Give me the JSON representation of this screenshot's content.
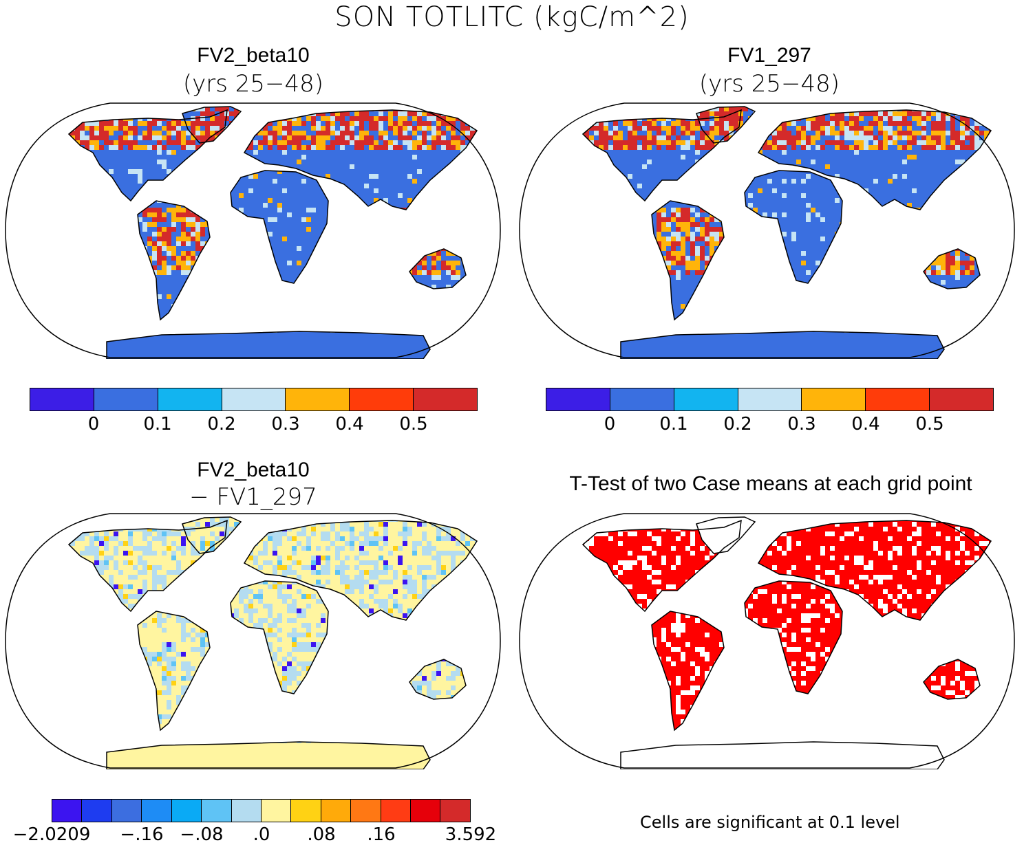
{
  "figure_title": "SON TOTLITC (kgC/m^2)",
  "panels": [
    {
      "title": "FV2_beta10",
      "subtitle": "(yrs 25−48)"
    },
    {
      "title": "FV1_297",
      "subtitle": "(yrs 25−48)"
    },
    {
      "title": "FV2_beta10",
      "subtitle": "− FV1_297"
    },
    {
      "title": "T-Test of two Case means at each grid point",
      "subtitle": ""
    }
  ],
  "colorbar_abs": {
    "colors": [
      "#3c1ee6",
      "#3a6fe0",
      "#12b4f0",
      "#c6e4f4",
      "#ffb40a",
      "#ff3c0a",
      "#d42a2a"
    ],
    "ticks": [
      "0",
      "0.1",
      "0.2",
      "0.3",
      "0.4",
      "0.5"
    ]
  },
  "colorbar_diff": {
    "colors": [
      "#3c14f0",
      "#1e3cf0",
      "#3c6ee0",
      "#1e8cf5",
      "#0aaaf5",
      "#5fc3f5",
      "#b4dcf0",
      "#fff5a0",
      "#ffd214",
      "#ffaa0a",
      "#ff7814",
      "#ff3c14",
      "#e6000a",
      "#d42a2a"
    ],
    "ticks": [
      "−2.0209",
      "−.16",
      "−.08",
      ".0",
      ".08",
      ".16",
      "3.592"
    ]
  },
  "significance_note": "Cells are significant at 0.1 level",
  "map_colors": {
    "land_abs": "#3a6fe0",
    "high_abs": "#d42a2a",
    "mid_abs": "#ffb40a",
    "light_abs": "#c6e4f4",
    "land_diff": "#fff5a0",
    "neg_diff": "#b4dcf0",
    "signif": "#ff0000"
  }
}
